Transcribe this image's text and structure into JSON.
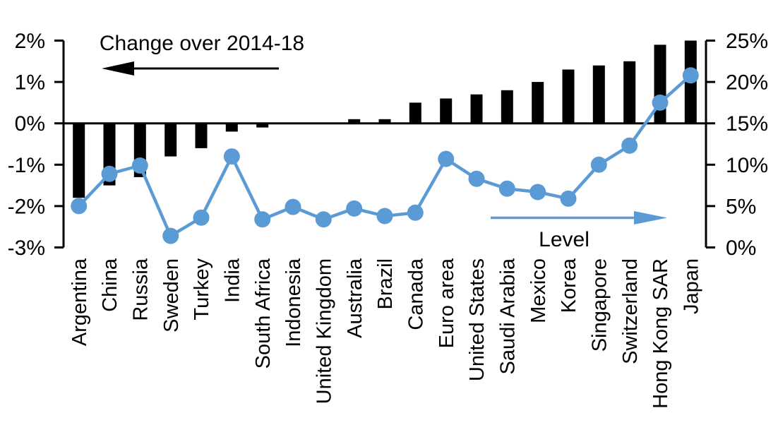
{
  "page": {
    "background_color": "#FFFFFF"
  },
  "chart_data": {
    "type": "combo",
    "description": "Bar chart (left axis: change over 2014-18) combined with line-and-marker series (right axis: level), by country",
    "categories": [
      "Argentina",
      "China",
      "Russia",
      "Sweden",
      "Turkey",
      "India",
      "South Africa",
      "Indonesia",
      "United Kingdom",
      "Australia",
      "Brazil",
      "Canada",
      "Euro area",
      "United States",
      "Saudi Arabia",
      "Mexico",
      "Korea",
      "Singapore",
      "Switzerland",
      "Hong Kong SAR",
      "Japan"
    ],
    "series": [
      {
        "name": "Change over 2014-18",
        "type": "bar",
        "axis": "left",
        "color": "#000000",
        "unit": "%",
        "values": [
          -1.8,
          -1.5,
          -1.3,
          -0.8,
          -0.6,
          -0.2,
          -0.1,
          0,
          0,
          0.1,
          0.1,
          0.5,
          0.6,
          0.7,
          0.8,
          1.0,
          1.3,
          1.4,
          1.5,
          1.9,
          2.0
        ]
      },
      {
        "name": "Level",
        "type": "line",
        "axis": "right",
        "color": "#5B9BD5",
        "unit": "%",
        "values": [
          5.0,
          8.9,
          9.9,
          1.4,
          3.6,
          11.0,
          3.4,
          4.9,
          3.4,
          4.7,
          3.8,
          4.2,
          10.7,
          8.3,
          7.1,
          6.7,
          5.9,
          10.0,
          12.3,
          17.5,
          20.8
        ]
      }
    ],
    "left_axis": {
      "tick_labels": [
        "2%",
        "1%",
        "0%",
        "-1%",
        "-2%",
        "-3%"
      ],
      "tick_values": [
        2,
        1,
        0,
        -1,
        -2,
        -3
      ],
      "range": [
        -3,
        2
      ]
    },
    "right_axis": {
      "tick_labels": [
        "25%",
        "20%",
        "15%",
        "10%",
        "5%",
        "0%"
      ],
      "tick_values": [
        25,
        20,
        15,
        10,
        5,
        0
      ],
      "range": [
        0,
        25
      ]
    },
    "annotations": {
      "left_arrow": {
        "label": "Change over 2014-18",
        "direction": "left",
        "color": "#000000"
      },
      "right_arrow": {
        "label": "Level",
        "direction": "right",
        "color": "#5B9BD5"
      }
    },
    "grid": false,
    "legend_position": "in-plot-arrow-annotations"
  }
}
